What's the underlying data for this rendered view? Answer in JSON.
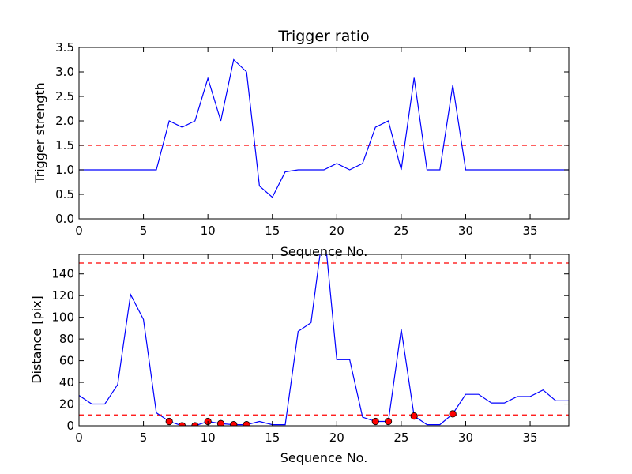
{
  "chart_data": [
    {
      "type": "line",
      "title": "Trigger ratio",
      "xlabel": "Sequence No.",
      "ylabel": "Trigger strength",
      "xlim": [
        0,
        38
      ],
      "ylim": [
        0,
        3.5
      ],
      "xticks": [
        0,
        5,
        10,
        15,
        20,
        25,
        30,
        35
      ],
      "yticks": [
        "0.0",
        "0.5",
        "1.0",
        "1.5",
        "2.0",
        "2.5",
        "3.0",
        "3.5"
      ],
      "grid": false,
      "series": [
        {
          "color": "#0000ff",
          "x": [
            0,
            1,
            2,
            3,
            4,
            5,
            6,
            7,
            8,
            9,
            10,
            11,
            12,
            13,
            14,
            15,
            16,
            17,
            18,
            19,
            20,
            21,
            22,
            23,
            24,
            25,
            26,
            27,
            28,
            29,
            30,
            31,
            32,
            33,
            34,
            35,
            36,
            37,
            38
          ],
          "values": [
            1.0,
            1.0,
            1.0,
            1.0,
            1.0,
            1.0,
            1.0,
            2.0,
            1.87,
            2.0,
            2.87,
            2.0,
            3.25,
            3.0,
            0.67,
            0.44,
            0.96,
            1.0,
            1.0,
            1.0,
            1.13,
            1.0,
            1.13,
            1.87,
            2.0,
            1.0,
            2.88,
            1.0,
            1.0,
            2.73,
            1.0,
            1.0,
            1.0,
            1.0,
            1.0,
            1.0,
            1.0,
            1.0,
            1.0
          ]
        }
      ],
      "thresholds": [
        {
          "value": 1.5,
          "color": "#ff0000",
          "style": "dashed"
        }
      ]
    },
    {
      "type": "line",
      "title": "",
      "xlabel": "Sequence No.",
      "ylabel": "Distance [pix]",
      "xlim": [
        0,
        38
      ],
      "ylim": [
        0,
        158
      ],
      "xticks": [
        0,
        5,
        10,
        15,
        20,
        25,
        30,
        35
      ],
      "yticks": [
        0,
        20,
        40,
        60,
        80,
        100,
        120,
        140
      ],
      "grid": false,
      "series": [
        {
          "color": "#0000ff",
          "x": [
            0,
            1,
            2,
            3,
            4,
            5,
            6,
            7,
            8,
            9,
            10,
            11,
            12,
            13,
            14,
            15,
            16,
            17,
            18,
            19,
            20,
            21,
            22,
            23,
            24,
            25,
            26,
            27,
            28,
            29,
            30,
            31,
            32,
            33,
            34,
            35,
            36,
            37,
            38
          ],
          "values": [
            28,
            20,
            20,
            38,
            121,
            98,
            12,
            4,
            0,
            0,
            4,
            2,
            1,
            1,
            4,
            1,
            1,
            87,
            95,
            185,
            61,
            61,
            8,
            4,
            4,
            89,
            9,
            1,
            1,
            11,
            29,
            29,
            21,
            21,
            27,
            27,
            33,
            23,
            23
          ]
        },
        {
          "color": "#ff0000",
          "marker": "circle",
          "x": [
            7,
            8,
            9,
            10,
            11,
            12,
            13,
            23,
            24,
            26,
            29
          ],
          "values": [
            4,
            0,
            0,
            4,
            2,
            1,
            1,
            4,
            4,
            9,
            11
          ]
        }
      ],
      "thresholds": [
        {
          "value": 150,
          "color": "#ff0000",
          "style": "dashed"
        },
        {
          "value": 10,
          "color": "#ff0000",
          "style": "dashed"
        }
      ]
    }
  ]
}
